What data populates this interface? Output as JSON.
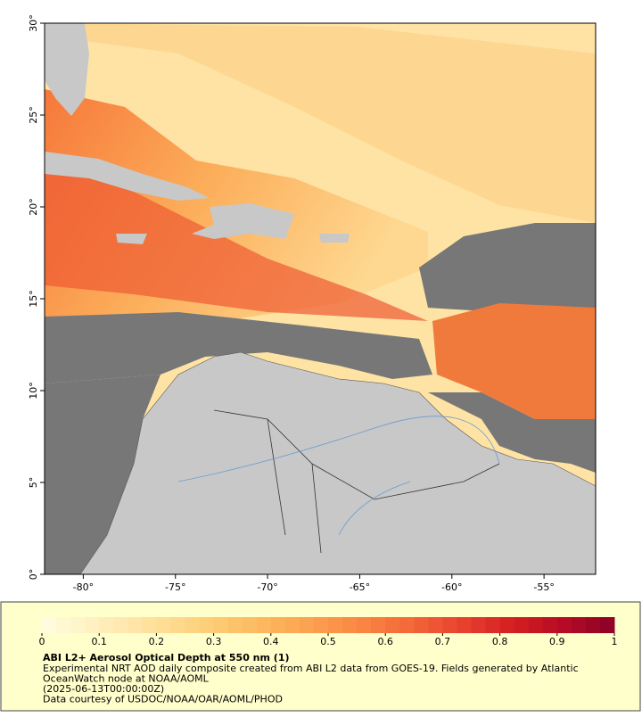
{
  "map": {
    "xlim": [
      -82.1,
      -52.2
    ],
    "ylim": [
      0,
      30
    ],
    "xticks": [
      {
        "value": -80,
        "label": "-80°"
      },
      {
        "value": -75,
        "label": "-75°"
      },
      {
        "value": -70,
        "label": "-70°"
      },
      {
        "value": -65,
        "label": "-65°"
      },
      {
        "value": -60,
        "label": "-60°"
      },
      {
        "value": -55,
        "label": "-55°"
      }
    ],
    "yticks": [
      {
        "value": 0,
        "label": "0°"
      },
      {
        "value": 5,
        "label": "5°"
      },
      {
        "value": 10,
        "label": "10°"
      },
      {
        "value": 15,
        "label": "15°"
      },
      {
        "value": 20,
        "label": "20°"
      },
      {
        "value": 25,
        "label": "25°"
      },
      {
        "value": 30,
        "label": "30°"
      }
    ]
  },
  "colorbar": {
    "clim": [
      0,
      1
    ],
    "ticks": [
      0,
      0.1,
      0.2,
      0.3,
      0.4,
      0.5,
      0.6,
      0.7,
      0.8,
      0.9,
      1
    ],
    "colors": [
      "#fffde0",
      "#fff1c0",
      "#ffe2a0",
      "#fed27e",
      "#fdbd64",
      "#fca552",
      "#fb8a44",
      "#f46a3a",
      "#e94430",
      "#d52022",
      "#b70b26",
      "#8b0026"
    ]
  },
  "caption": {
    "title": "ABI L2+ Aerosol Optical Depth at 550 nm (1)",
    "lines": [
      "Experimental NRT AOD daily composite created from ABI L2 data from GOES-19. Fields generated by Atlantic",
      "OceanWatch node at NOAA/AOML",
      "(2025-06-13T00:00:00Z)",
      "Data courtesy of USDOC/NOAA/OAR/AOML/PHOD"
    ]
  }
}
